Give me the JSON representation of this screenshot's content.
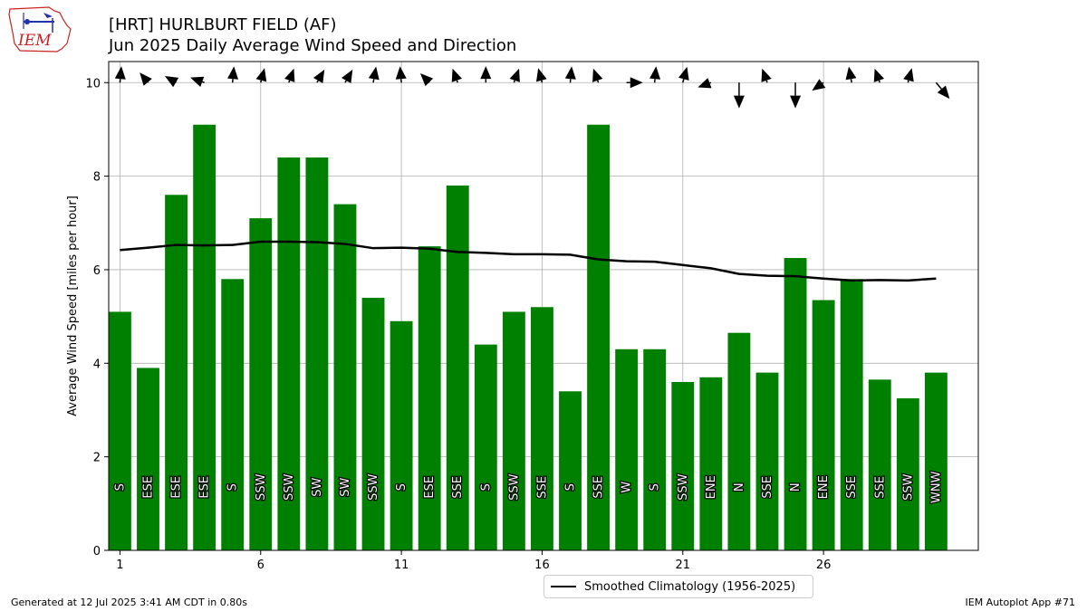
{
  "header": {
    "title_line1": "[HRT] HURLBURT FIELD (AF)",
    "title_line2": "Jun 2025 Daily Average Wind Speed and Direction"
  },
  "logo": {
    "text": "IEM"
  },
  "footer": {
    "generated": "Generated at 12 Jul 2025 3:41 AM CDT in 0.80s",
    "app": "IEM Autoplot App #71"
  },
  "legend": {
    "label": "Smoothed Climatology (1956-2025)"
  },
  "colors": {
    "bar": "#008000",
    "climo": "#000000",
    "grid": "#b0b0b0",
    "logo_red": "#cc2222",
    "logo_blue": "#2233aa"
  },
  "chart_data": {
    "type": "bar",
    "ylabel": "Average Wind Speed [miles per hour]",
    "xlabel": "",
    "ylim": [
      0,
      10.45
    ],
    "xlim": [
      0.6,
      31.5
    ],
    "grid": true,
    "legend_position": "bottom-center, below axes",
    "xticks": [
      1,
      6,
      11,
      16,
      21,
      26
    ],
    "yticks": [
      0,
      2,
      4,
      6,
      8,
      10
    ],
    "days": [
      1,
      2,
      3,
      4,
      5,
      6,
      7,
      8,
      9,
      10,
      11,
      12,
      13,
      14,
      15,
      16,
      17,
      18,
      19,
      20,
      21,
      22,
      23,
      24,
      25,
      26,
      27,
      28,
      29,
      30
    ],
    "speed_mph": [
      5.1,
      3.9,
      7.6,
      9.1,
      5.8,
      7.1,
      8.4,
      8.4,
      7.4,
      5.4,
      4.9,
      6.5,
      7.8,
      4.4,
      5.1,
      5.2,
      3.4,
      9.1,
      4.3,
      4.3,
      3.6,
      3.7,
      4.65,
      3.8,
      6.25,
      5.35,
      5.8,
      3.65,
      3.25,
      3.8
    ],
    "direction": [
      "S",
      "ESE",
      "ESE",
      "ESE",
      "S",
      "SSW",
      "SSW",
      "SW",
      "SW",
      "SSW",
      "S",
      "ESE",
      "SSE",
      "S",
      "SSW",
      "SSE",
      "S",
      "SSE",
      "W",
      "S",
      "SSW",
      "ENE",
      "N",
      "SSE",
      "N",
      "ENE",
      "SSE",
      "SSE",
      "SSW",
      "WNW"
    ],
    "arrow_days": [
      1,
      2,
      3,
      4,
      5,
      6,
      7,
      8,
      9,
      10,
      11,
      12,
      13,
      14,
      15,
      16,
      17,
      18,
      19,
      20,
      21,
      22,
      23,
      24,
      25,
      26,
      27,
      28,
      29,
      30
    ],
    "arrow_toward_deg": [
      5,
      320,
      300,
      290,
      5,
      15,
      20,
      30,
      30,
      10,
      355,
      315,
      340,
      0,
      20,
      345,
      5,
      340,
      90,
      5,
      15,
      250,
      180,
      340,
      180,
      235,
      350,
      340,
      15,
      140
    ],
    "arrow_length_mph": [
      0.35,
      0.28,
      0.28,
      0.32,
      0.35,
      0.32,
      0.32,
      0.32,
      0.32,
      0.35,
      0.35,
      0.28,
      0.32,
      0.35,
      0.32,
      0.32,
      0.35,
      0.32,
      0.35,
      0.35,
      0.35,
      0.3,
      0.55,
      0.32,
      0.55,
      0.3,
      0.35,
      0.32,
      0.32,
      0.45
    ],
    "climatology": {
      "name": "Smoothed Climatology (1956-2025)",
      "days": [
        1,
        2,
        3,
        4,
        5,
        6,
        7,
        8,
        9,
        10,
        11,
        12,
        13,
        14,
        15,
        16,
        17,
        18,
        19,
        20,
        21,
        22,
        23,
        24,
        25,
        26,
        27,
        28,
        29,
        30
      ],
      "values": [
        6.42,
        6.47,
        6.53,
        6.52,
        6.53,
        6.6,
        6.6,
        6.59,
        6.55,
        6.46,
        6.47,
        6.45,
        6.38,
        6.36,
        6.33,
        6.33,
        6.32,
        6.22,
        6.18,
        6.17,
        6.1,
        6.03,
        5.91,
        5.87,
        5.86,
        5.81,
        5.77,
        5.78,
        5.77,
        5.81
      ]
    }
  }
}
